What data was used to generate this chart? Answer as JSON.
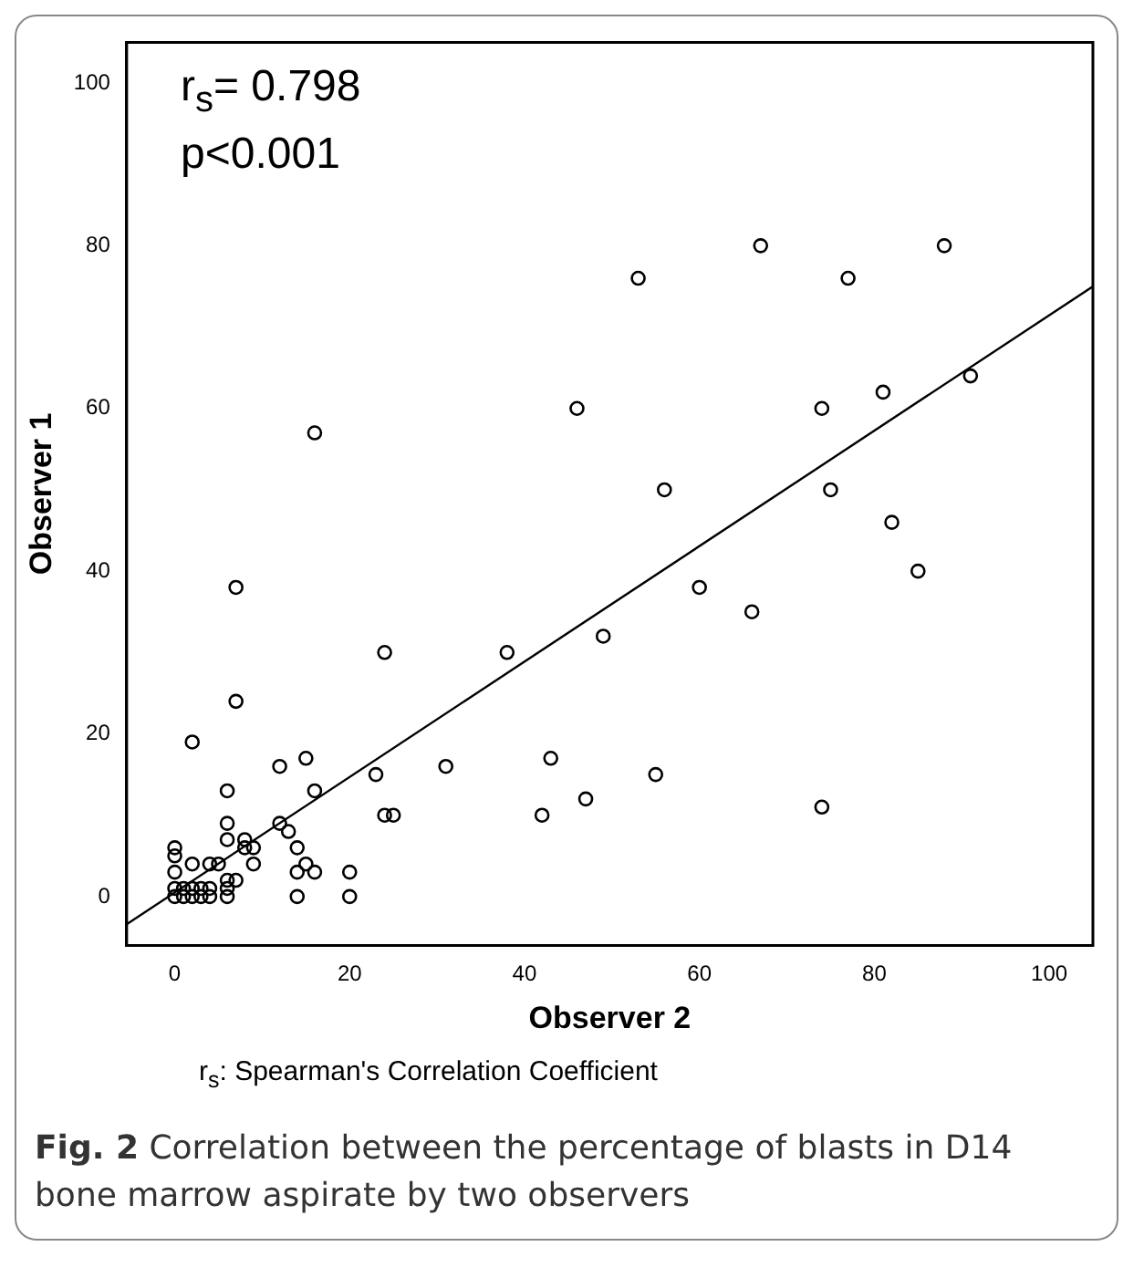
{
  "chart_data": {
    "type": "scatter",
    "xlabel": "Observer 2",
    "ylabel": "Observer 1",
    "xlim": [
      -5.5,
      105
    ],
    "ylim": [
      -6,
      105
    ],
    "xticks": [
      0,
      20,
      40,
      60,
      80,
      100
    ],
    "yticks": [
      0,
      20,
      40,
      60,
      80,
      100
    ],
    "grid": false,
    "legend": false,
    "marker": "circle",
    "annotations": [
      "r$_{s}$= 0.798",
      "p<0.001",
      "r$_{s}$:  Spearman's Correlation Coefficient",
      "Fig. 2 Correlation between the percentage of blasts in D14 bone marrow aspirate by two observers"
    ],
    "series": [
      {
        "color": "#000000",
        "x": [
          0,
          0,
          0,
          0,
          0,
          1,
          1,
          2,
          2,
          2,
          2,
          3,
          3,
          4,
          4,
          4,
          5,
          6,
          6,
          6,
          6,
          6,
          6,
          7,
          7,
          7,
          8,
          8,
          9,
          9,
          12,
          12,
          13,
          14,
          14,
          14,
          15,
          15,
          16,
          16,
          16,
          20,
          20,
          23,
          24,
          24,
          25,
          31,
          38,
          42,
          43,
          46,
          47,
          49,
          53,
          55,
          56,
          60,
          66,
          67,
          74,
          74,
          75,
          77,
          81,
          82,
          85,
          88,
          91
        ],
        "values": [
          0,
          1,
          3,
          5,
          6,
          0,
          1,
          0,
          1,
          4,
          19,
          0,
          1,
          0,
          1,
          4,
          4,
          0,
          1,
          2,
          7,
          9,
          13,
          2,
          24,
          38,
          6,
          7,
          4,
          6,
          9,
          16,
          8,
          0,
          3,
          6,
          4,
          17,
          3,
          13,
          57,
          0,
          3,
          15,
          10,
          30,
          10,
          16,
          30,
          10,
          17,
          60,
          12,
          32,
          76,
          15,
          50,
          38,
          35,
          80,
          11,
          60,
          50,
          76,
          62,
          46,
          40,
          80,
          64
        ]
      },
      {
        "type": "line",
        "color": "#000000",
        "marker": "none",
        "line_style": "solid",
        "x": [
          -5.5,
          105
        ],
        "values": [
          -3.4,
          75
        ]
      }
    ]
  }
}
